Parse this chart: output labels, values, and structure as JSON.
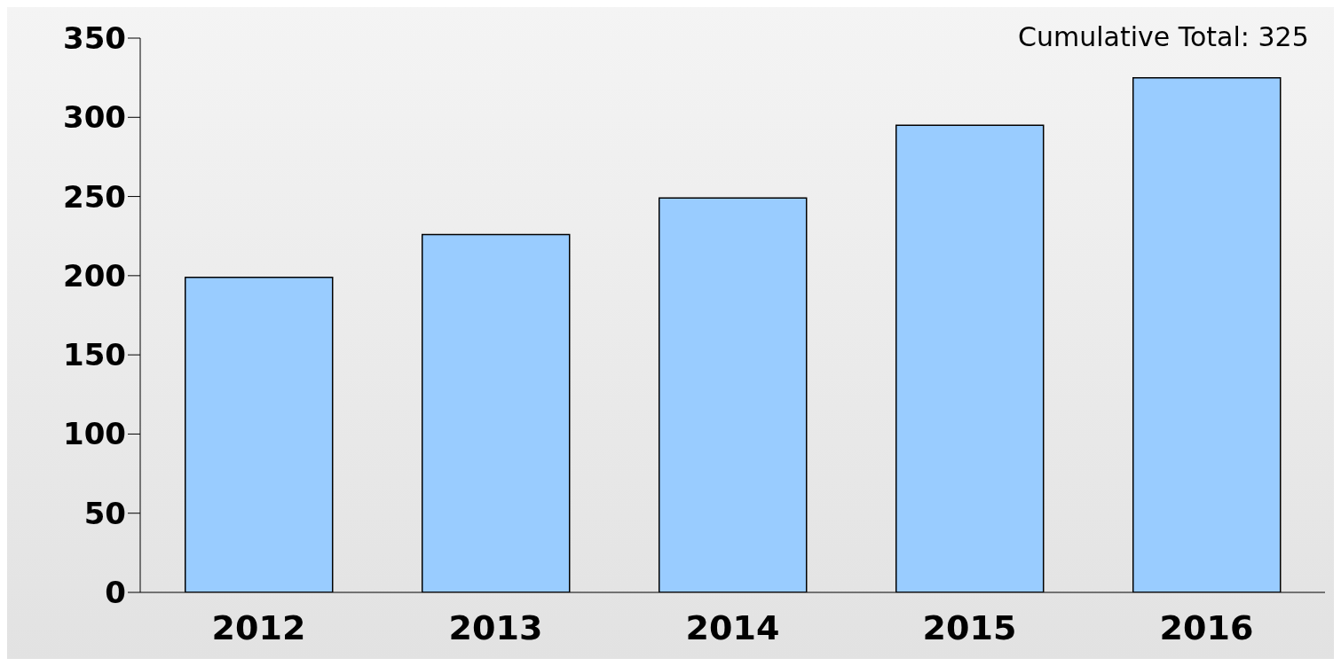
{
  "chart_data": {
    "type": "bar",
    "categories": [
      "2012",
      "2013",
      "2014",
      "2015",
      "2016"
    ],
    "values": [
      199,
      226,
      249,
      295,
      325
    ],
    "color": "#99ccff",
    "ylim": [
      0,
      350
    ],
    "yticks": [
      0,
      50,
      100,
      150,
      200,
      250,
      300,
      350
    ],
    "grid": false,
    "annotations": [
      {
        "text": "Cumulative Total: 325",
        "x": "2016",
        "y": 325
      }
    ]
  }
}
